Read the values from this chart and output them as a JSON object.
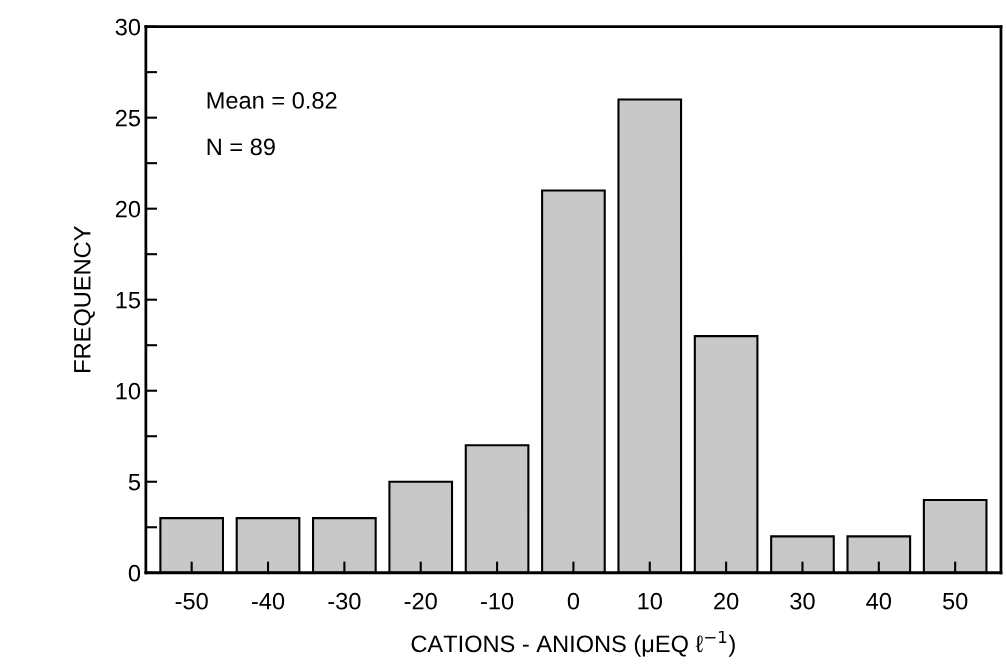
{
  "chart_data": {
    "type": "bar",
    "xlabel": "CATIONS - ANIONS (μEQ ℓ$^{−1}$)",
    "ylabel": "FREQUENCY",
    "categories": [
      "-50",
      "-40",
      "-30",
      "-20",
      "-10",
      "0",
      "10",
      "20",
      "30",
      "40",
      "50"
    ],
    "values": [
      3,
      3,
      3,
      5,
      7,
      21,
      26,
      13,
      2,
      2,
      4
    ],
    "color": "#c8c8c8",
    "ylim": [
      0,
      30
    ],
    "yticks": [
      0,
      {
        "value": 2.5,
        "label": null
      },
      5,
      {
        "value": 7.5,
        "label": null
      },
      10,
      {
        "value": 12.5,
        "label": null
      },
      15,
      {
        "value": 17.5,
        "label": null
      },
      20,
      {
        "value": 22.5,
        "label": null
      },
      25,
      {
        "value": 27.5,
        "label": null
      },
      30
    ],
    "annotations": [
      "Mean = 0.82",
      "N = 89"
    ],
    "grid": false,
    "legend": false
  }
}
